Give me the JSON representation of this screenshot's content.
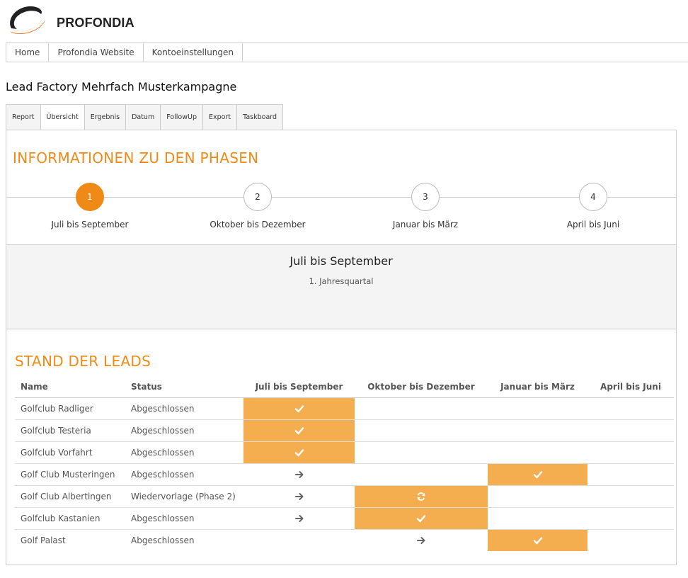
{
  "header": {
    "brand": "PROFONDIA",
    "accent_color": "#ef8a17",
    "logo_icon": "profondia-swoosh-logo"
  },
  "topnav": {
    "items": [
      {
        "label": "Home"
      },
      {
        "label": "Profondia Website"
      },
      {
        "label": "Kontoeinstellungen"
      }
    ]
  },
  "page": {
    "title": "Lead Factory Mehrfach Musterkampagne"
  },
  "tabs": {
    "items": [
      {
        "label": "Report",
        "active": false
      },
      {
        "label": "Übersicht",
        "active": true
      },
      {
        "label": "Ergebnis",
        "active": false
      },
      {
        "label": "Datum",
        "active": false
      },
      {
        "label": "FollowUp",
        "active": false
      },
      {
        "label": "Export",
        "active": false
      },
      {
        "label": "Taskboard",
        "active": false
      }
    ]
  },
  "phases": {
    "heading": "INFORMATIONEN ZU DEN PHASEN",
    "items": [
      {
        "number": "1",
        "label": "Juli bis September",
        "active": true
      },
      {
        "number": "2",
        "label": "Oktober bis Dezember",
        "active": false
      },
      {
        "number": "3",
        "label": "Januar bis März",
        "active": false
      },
      {
        "number": "4",
        "label": "April bis Juni",
        "active": false
      }
    ],
    "selected": {
      "title": "Juli bis September",
      "subtitle": "1. Jahresquartal"
    }
  },
  "leads": {
    "heading": "STAND DER LEADS",
    "columns": {
      "name": "Name",
      "status": "Status",
      "phase1": "Juli bis September",
      "phase2": "Oktober bis Dezember",
      "phase3": "Januar bis März",
      "phase4": "April bis Juni"
    },
    "highlight_color": "#f5ae4f",
    "rows": [
      {
        "name": "Golfclub Radliger",
        "status": "Abgeschlossen",
        "cells": [
          "check-icon",
          "",
          "",
          ""
        ],
        "highlight": [
          true,
          false,
          false,
          false
        ]
      },
      {
        "name": "Golfclub Testeria",
        "status": "Abgeschlossen",
        "cells": [
          "check-icon",
          "",
          "",
          ""
        ],
        "highlight": [
          true,
          false,
          false,
          false
        ]
      },
      {
        "name": "Golfclub Vorfahrt",
        "status": "Abgeschlossen",
        "cells": [
          "check-icon",
          "",
          "",
          ""
        ],
        "highlight": [
          true,
          false,
          false,
          false
        ]
      },
      {
        "name": "Golf Club Musteringen",
        "status": "Abgeschlossen",
        "cells": [
          "arrow-right-icon",
          "",
          "check-icon",
          ""
        ],
        "highlight": [
          false,
          false,
          true,
          false
        ]
      },
      {
        "name": "Golf Club Albertingen",
        "status": "Wiedervorlage (Phase 2)",
        "cells": [
          "arrow-right-icon",
          "refresh-icon",
          "",
          ""
        ],
        "highlight": [
          false,
          true,
          false,
          false
        ]
      },
      {
        "name": "Golfclub Kastanien",
        "status": "Abgeschlossen",
        "cells": [
          "arrow-right-icon",
          "check-icon",
          "",
          ""
        ],
        "highlight": [
          false,
          true,
          false,
          false
        ]
      },
      {
        "name": "Golf Palast",
        "status": "Abgeschlossen",
        "cells": [
          "",
          "arrow-right-icon",
          "check-icon",
          ""
        ],
        "highlight": [
          false,
          false,
          true,
          false
        ]
      }
    ]
  }
}
